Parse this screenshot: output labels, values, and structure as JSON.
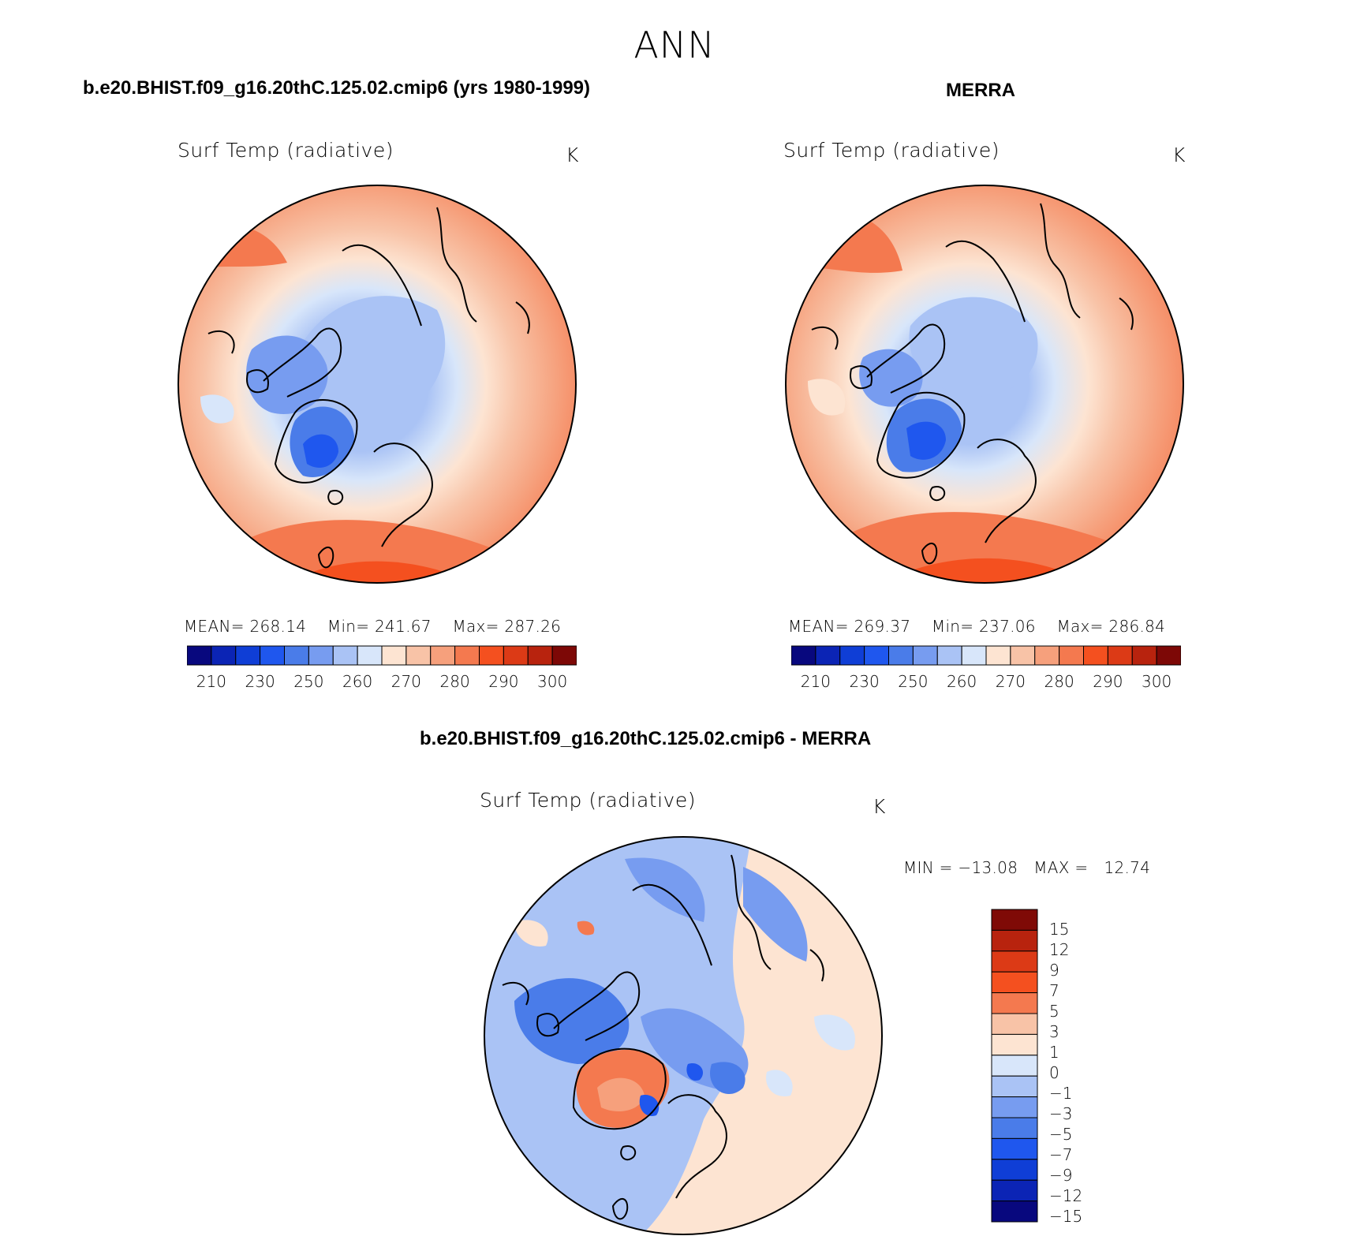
{
  "page": {
    "title": "ANN"
  },
  "panel_model": {
    "case_title": "b.e20.BHIST.f09_g16.20thC.125.02.cmip6 (yrs 1980-1999)",
    "variable": "Surf Temp (radiative)",
    "units": "K",
    "stats": {
      "mean_label": "MEAN=",
      "mean": "268.14",
      "min_label": "Min=",
      "min": "241.67",
      "max_label": "Max=",
      "max": "287.26"
    }
  },
  "panel_obs": {
    "case_title": "MERRA",
    "variable": "Surf Temp (radiative)",
    "units": "K",
    "stats": {
      "mean_label": "MEAN=",
      "mean": "269.37",
      "min_label": "Min=",
      "min": "237.06",
      "max_label": "Max=",
      "max": "286.84"
    }
  },
  "panel_diff": {
    "case_title": "b.e20.BHIST.f09_g16.20thC.125.02.cmip6 - MERRA",
    "variable": "Surf Temp (radiative)",
    "units": "K",
    "minmax": {
      "min_label": "MIN =",
      "min": "−13.08",
      "max_label": "MAX =",
      "max": "12.74"
    }
  },
  "colorbar_abs": {
    "colors": [
      "#08087e",
      "#0b24b5",
      "#0f3ed6",
      "#1f57ee",
      "#4a7ce9",
      "#779cf0",
      "#aac3f5",
      "#d8e6fa",
      "#fde4d2",
      "#f8c3a7",
      "#f6a07c",
      "#f4794f",
      "#f4501f",
      "#dc3a16",
      "#b8230e",
      "#7d0806"
    ],
    "tick_labels": [
      "210",
      "230",
      "250",
      "260",
      "270",
      "280",
      "290",
      "300"
    ]
  },
  "colorbar_diff": {
    "colors": [
      "#7f0a06",
      "#b8230e",
      "#dc3a16",
      "#f4501f",
      "#f4794f",
      "#f8c3a7",
      "#fde4d2",
      "#d8e6fa",
      "#aac3f5",
      "#779cf0",
      "#4a7ce9",
      "#1f57ee",
      "#0f3ed6",
      "#0b24b5",
      "#08087e"
    ],
    "labels": [
      "15",
      "12",
      "9",
      "7",
      "5",
      "3",
      "1",
      "0",
      "−1",
      "−3",
      "−5",
      "−7",
      "−9",
      "−12",
      "−15"
    ]
  },
  "map_colors": {
    "warm_deep": "#f4501f",
    "warm_mid": "#f4794f",
    "warm_light": "#f8c3a7",
    "warm_pale": "#fde4d2",
    "cold_pale": "#d8e6fa",
    "cold_light": "#aac3f5",
    "cold_mid": "#779cf0",
    "cold_deep": "#4a7ce9",
    "cold_dark": "#1f57ee"
  }
}
